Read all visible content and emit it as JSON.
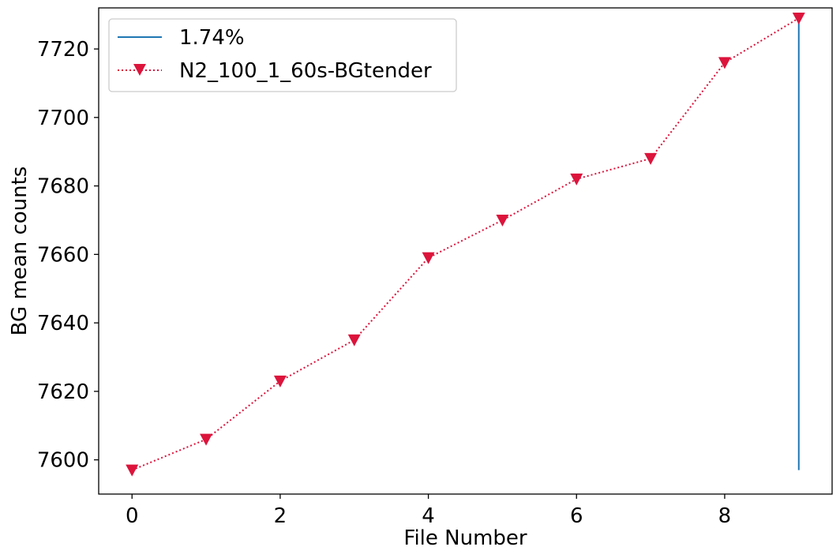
{
  "chart_data": {
    "type": "line",
    "xlabel": "File Number",
    "ylabel": "BG mean counts",
    "xlim": [
      -0.45,
      9.45
    ],
    "ylim": [
      7590,
      7732
    ],
    "xticks": [
      0,
      2,
      4,
      6,
      8
    ],
    "yticks": [
      7600,
      7620,
      7640,
      7660,
      7680,
      7700,
      7720
    ],
    "grid": false,
    "legend_position": "top-left",
    "series": [
      {
        "name": "N2_100_1_60s-BGtender",
        "style": "dotted line with downward-triangle markers",
        "color": "#dc143c",
        "x": [
          0,
          1,
          2,
          3,
          4,
          5,
          6,
          7,
          8,
          9
        ],
        "y": [
          7597,
          7606,
          7623,
          7635,
          7659,
          7670,
          7682,
          7688,
          7716,
          7729
        ]
      },
      {
        "name": "1.74%",
        "style": "solid vertical line",
        "color": "#1f77b4",
        "x": [
          9,
          9
        ],
        "y": [
          7597,
          7729
        ]
      }
    ]
  }
}
